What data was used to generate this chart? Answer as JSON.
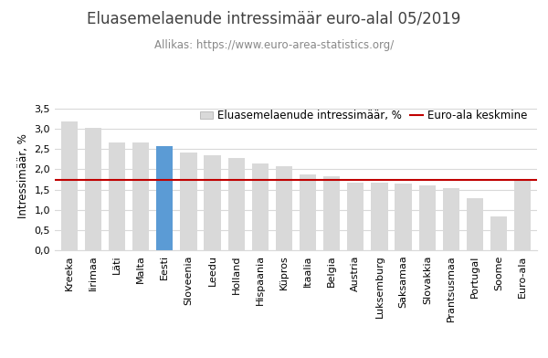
{
  "title": "Eluasemelaenude intressimäär euro-alal 05/2019",
  "subtitle": "Allikas: https://www.euro-area-statistics.org/",
  "ylabel": "Intressimäär, %",
  "categories": [
    "Kreeka",
    "Iirimaa",
    "Läti",
    "Malta",
    "Eesti",
    "Sloveenia",
    "Leedu",
    "Holland",
    "Hispaania",
    "Küpros",
    "Itaalia",
    "Belgia",
    "Austria",
    "Luksemburg",
    "Saksamaa",
    "Slovakkia",
    "Prantsusmaa",
    "Portugal",
    "Soome",
    "Euro-ala"
  ],
  "values": [
    3.17,
    3.02,
    2.65,
    2.65,
    2.58,
    2.42,
    2.35,
    2.28,
    2.14,
    2.07,
    1.87,
    1.82,
    1.68,
    1.68,
    1.65,
    1.6,
    1.53,
    1.3,
    0.84,
    1.73
  ],
  "bar_color_default": "#d9d9d9",
  "bar_color_highlight": "#5b9bd5",
  "highlight_index": 4,
  "average_line": 1.73,
  "average_line_color": "#c00000",
  "ylim": [
    0,
    3.7
  ],
  "yticks": [
    0.0,
    0.5,
    1.0,
    1.5,
    2.0,
    2.5,
    3.0,
    3.5
  ],
  "ytick_labels": [
    "0,0",
    "0,5",
    "1,0",
    "1,5",
    "2,0",
    "2,5",
    "3,0",
    "3,5"
  ],
  "legend_bar_label": "Eluasemelaenude intressimäär, %",
  "legend_line_label": "Euro-ala keskmine",
  "title_fontsize": 12,
  "subtitle_fontsize": 8.5,
  "axis_fontsize": 8.5,
  "tick_fontsize": 8,
  "legend_fontsize": 8.5,
  "background_color": "#ffffff",
  "grid_color": "#d9d9d9"
}
